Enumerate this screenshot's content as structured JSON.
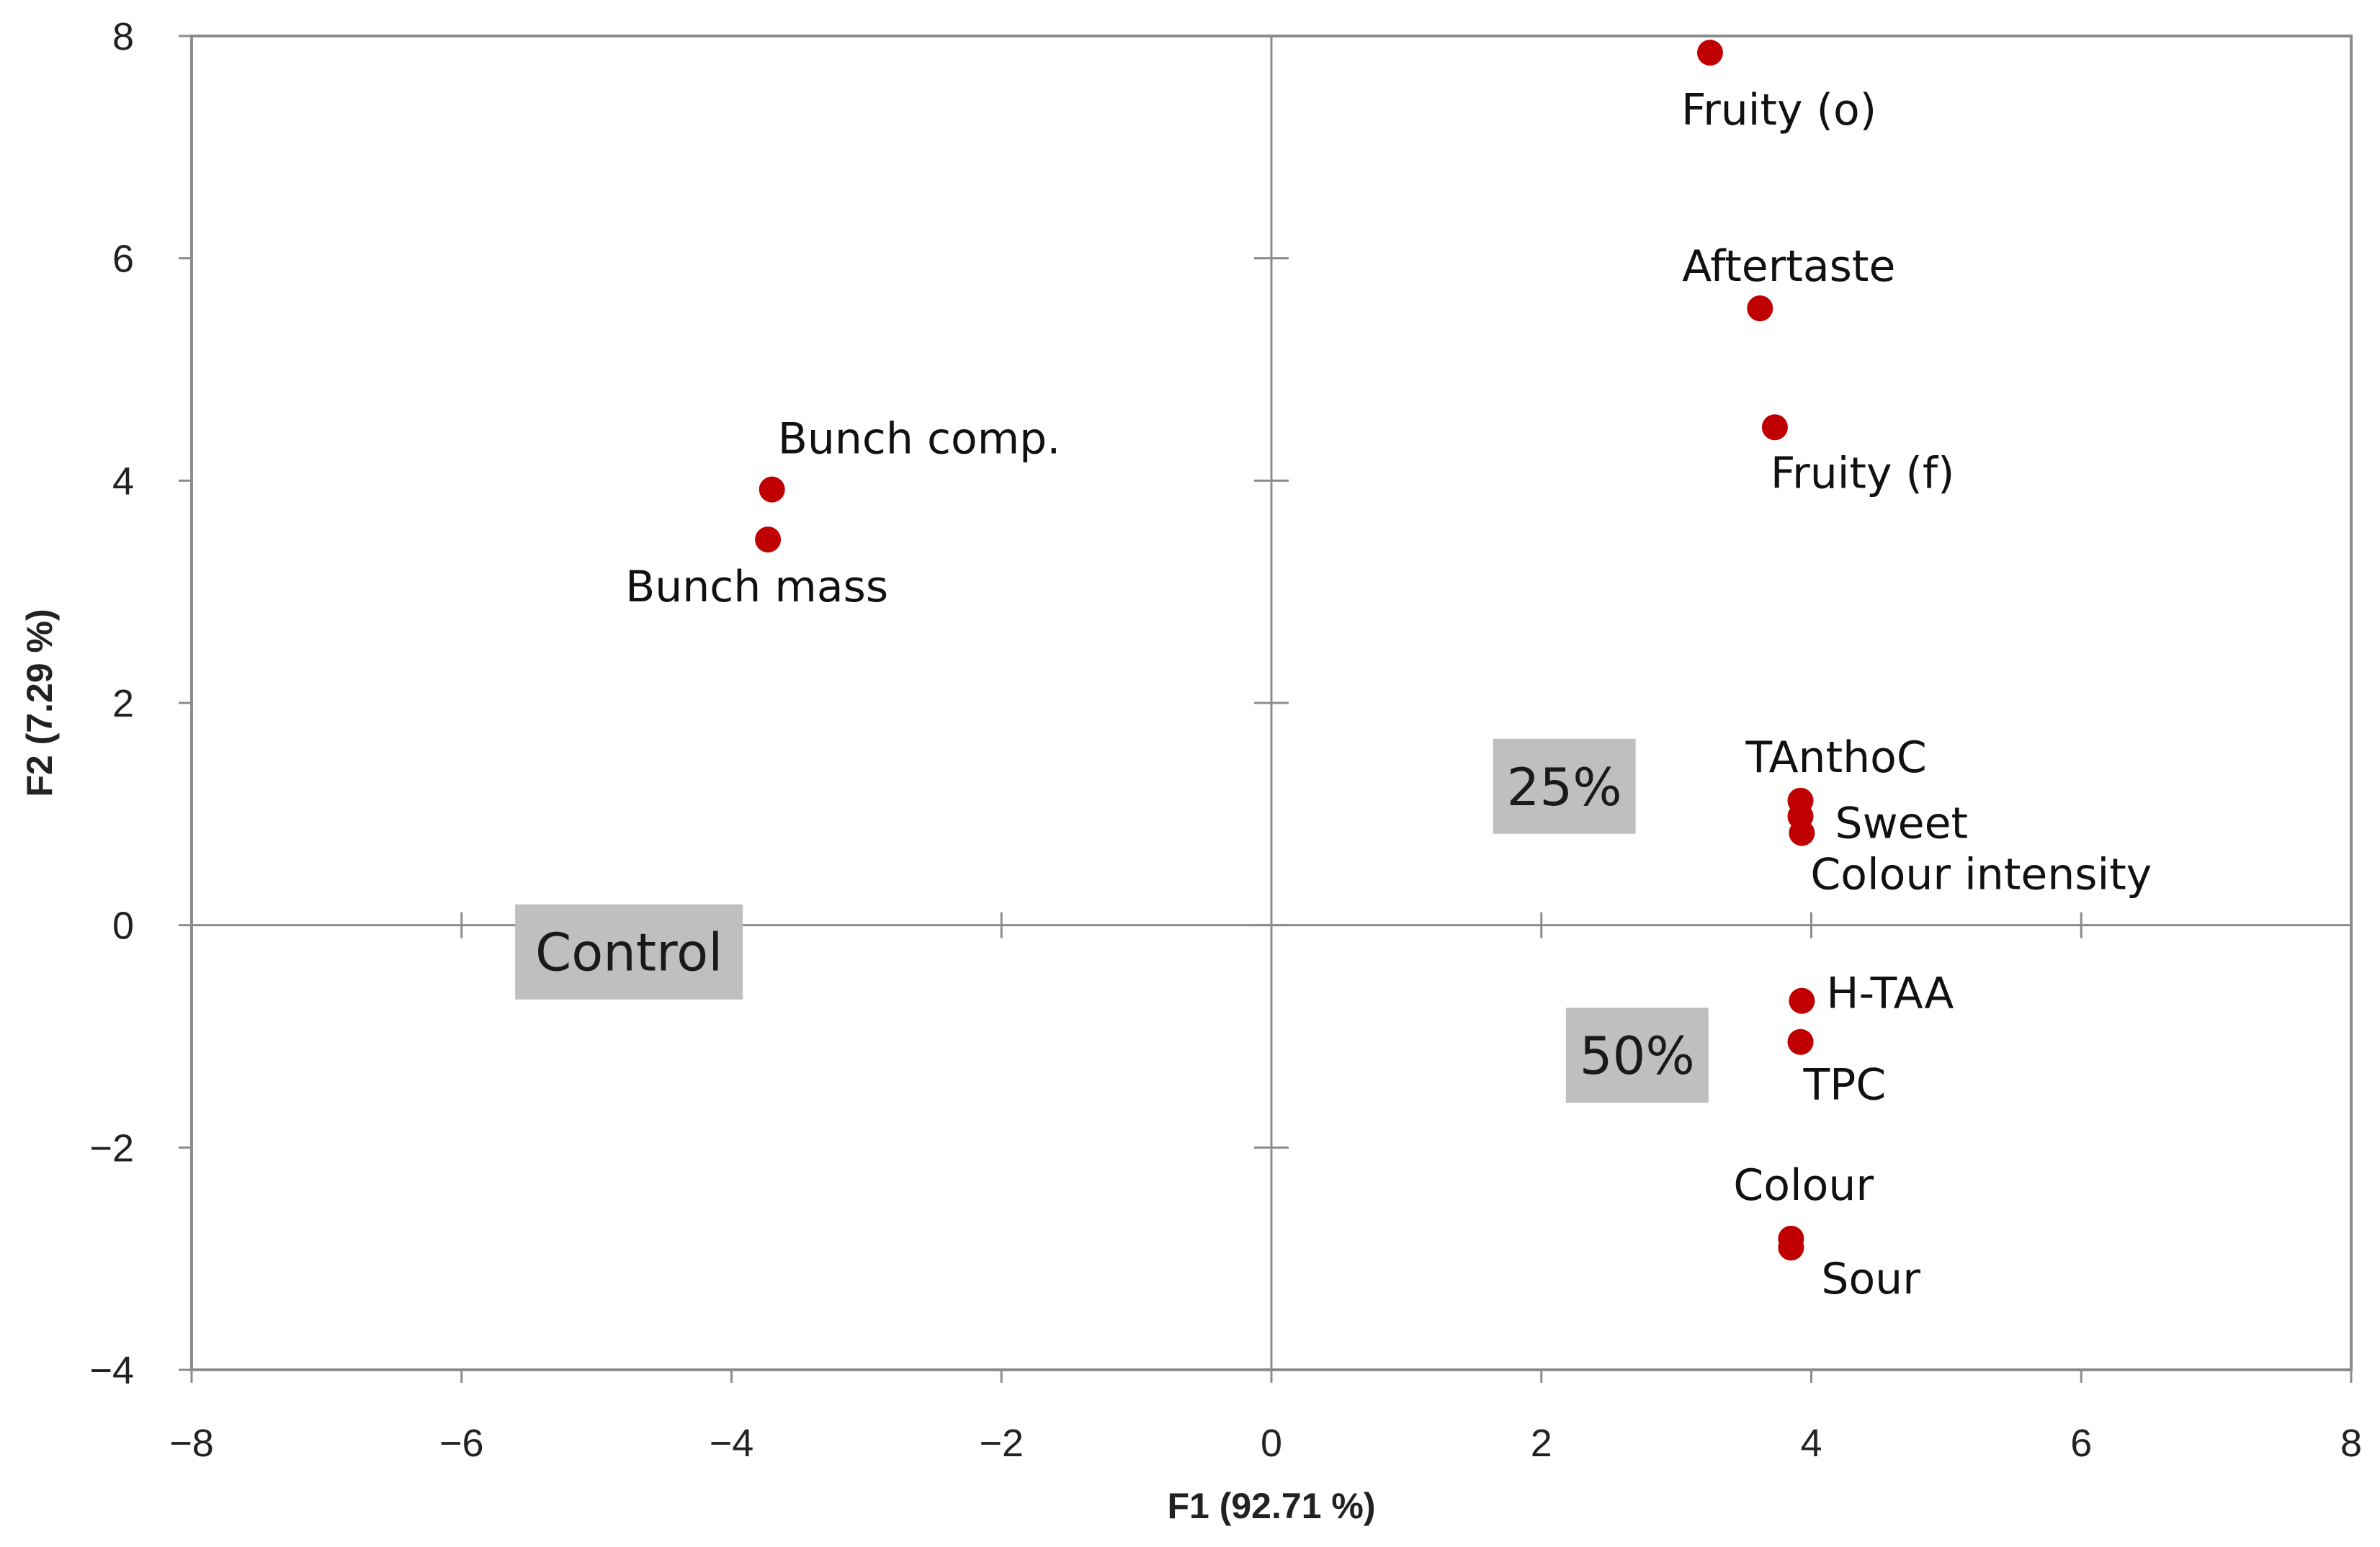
{
  "chart_data": {
    "type": "scatter",
    "title": "",
    "xlabel": "F1 (92.71 %)",
    "ylabel": "F2 (7.29 %)",
    "xlim": [
      -8,
      8
    ],
    "ylim": [
      -4,
      8
    ],
    "x_ticks": [
      -8,
      -6,
      -4,
      -2,
      0,
      2,
      4,
      6,
      8
    ],
    "y_ticks": [
      -4,
      -2,
      0,
      2,
      4,
      6,
      8
    ],
    "x_tick_labels": [
      "−8",
      "−6",
      "−4",
      "−2",
      "0",
      "2",
      "4",
      "6",
      "8"
    ],
    "y_tick_labels": [
      "−4",
      "−2",
      "0",
      "2",
      "4",
      "6",
      "8"
    ],
    "grid": false,
    "marker_color": "#c00000",
    "group_box_color": "#bfbfbf",
    "points": [
      {
        "label": "Fruity (o)",
        "x": 3.25,
        "y": 7.85
      },
      {
        "label": "Aftertaste",
        "x": 3.62,
        "y": 5.55
      },
      {
        "label": "Fruity (f)",
        "x": 3.73,
        "y": 4.48
      },
      {
        "label": "Bunch comp.",
        "x": -3.7,
        "y": 3.92
      },
      {
        "label": "Bunch mass",
        "x": -3.73,
        "y": 3.47
      },
      {
        "label": "TAnthoC",
        "x": 3.92,
        "y": 1.12
      },
      {
        "label": "Sweet",
        "x": 3.92,
        "y": 0.98
      },
      {
        "label": "Colour intensity",
        "x": 3.93,
        "y": 0.83
      },
      {
        "label": "H-TAA",
        "x": 3.93,
        "y": -0.68
      },
      {
        "label": "TPC",
        "x": 3.92,
        "y": -1.05
      },
      {
        "label": "Colour",
        "x": 3.85,
        "y": -2.82
      },
      {
        "label": "Sour",
        "x": 3.85,
        "y": -2.9
      }
    ],
    "groups": [
      {
        "label": "Control",
        "x": -4.76,
        "y": -0.24
      },
      {
        "label": "25%",
        "x": 2.17,
        "y": 1.25
      },
      {
        "label": "50%",
        "x": 2.71,
        "y": -1.17
      }
    ]
  }
}
